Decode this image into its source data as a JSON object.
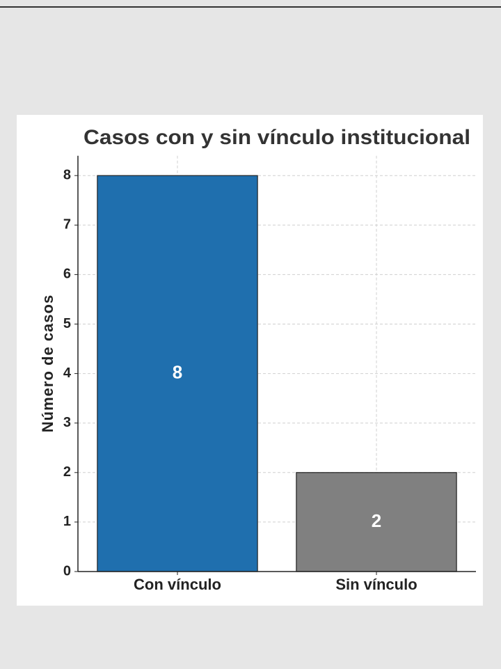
{
  "chart_data": {
    "type": "bar",
    "title": "Casos con y sin vínculo institucional",
    "ylabel": "Número de casos",
    "categories": [
      "Con vínculo",
      "Sin vínculo"
    ],
    "values": [
      8,
      2
    ],
    "colors": [
      "#1f6fae",
      "#808080"
    ],
    "ylim": [
      0,
      8.4
    ],
    "yticks": [
      0,
      1,
      2,
      3,
      4,
      5,
      6,
      7,
      8
    ],
    "grid": true
  }
}
